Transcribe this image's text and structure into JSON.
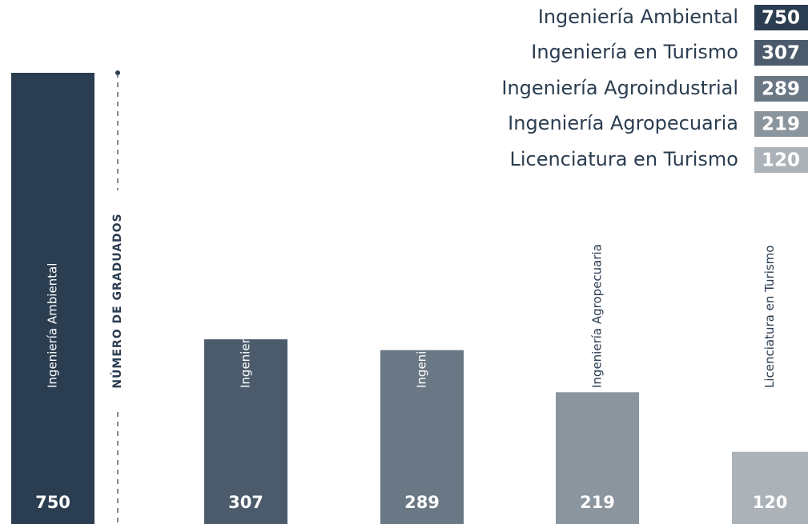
{
  "chart_data": {
    "type": "bar",
    "y_axis_label": "NÚMERO DE GRADUADOS",
    "categories": [
      "Ingeniería Ambiental",
      "Ingeniería en Turismo",
      "Ingeniería Agroindustrial",
      "Ingeniería Agropecuaria",
      "Licenciatura en Turismo"
    ],
    "values": [
      750,
      307,
      289,
      219,
      120
    ],
    "colors": [
      "#2b3d50",
      "#4b5b6b",
      "#6a7784",
      "#8b959e",
      "#abb2b8"
    ],
    "ylim": [
      0,
      750
    ]
  }
}
